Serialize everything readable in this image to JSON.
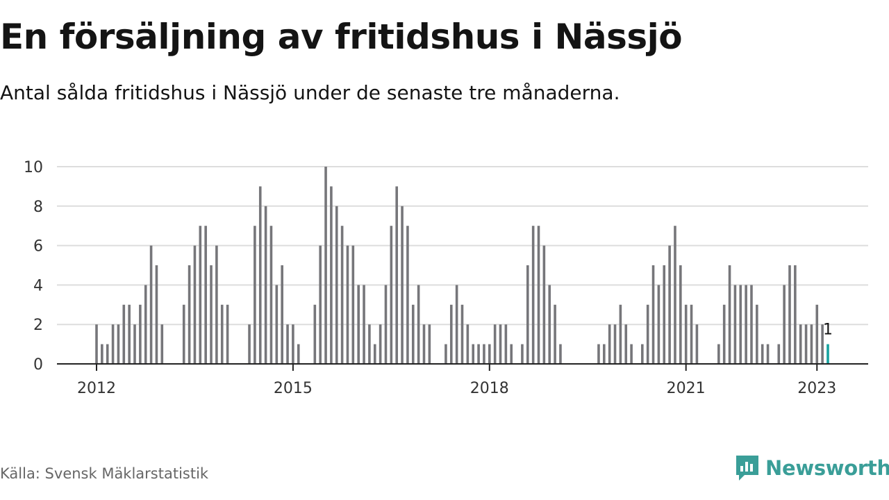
{
  "header": {
    "title": "En försäljning av fritidshus i Nässjö",
    "subtitle": "Antal sålda fritidshus i Nässjö under de senaste tre månaderna."
  },
  "footer": {
    "source": "Källa: Svensk Mäklarstatistik",
    "brand": "Newsworthy"
  },
  "colors": {
    "bar": "#76767a",
    "highlight": "#17a2a0",
    "grid": "#dddddd",
    "axis": "#222222",
    "brand": "#3a9e98"
  },
  "chart_data": {
    "type": "bar",
    "x_start": "2012-01",
    "x_end": "2023-01",
    "values": [
      2,
      1,
      1,
      2,
      2,
      3,
      3,
      2,
      3,
      4,
      6,
      5,
      2,
      null,
      null,
      null,
      3,
      5,
      6,
      7,
      7,
      5,
      6,
      3,
      3,
      null,
      null,
      null,
      2,
      7,
      9,
      8,
      7,
      4,
      5,
      2,
      2,
      1,
      null,
      null,
      3,
      6,
      10,
      9,
      8,
      7,
      6,
      6,
      4,
      4,
      2,
      1,
      2,
      4,
      7,
      9,
      8,
      7,
      3,
      4,
      2,
      2,
      null,
      null,
      1,
      3,
      4,
      3,
      2,
      1,
      1,
      1,
      1,
      2,
      2,
      2,
      1,
      null,
      1,
      5,
      7,
      7,
      6,
      4,
      3,
      1,
      null,
      null,
      null,
      null,
      null,
      null,
      1,
      1,
      2,
      2,
      3,
      2,
      1,
      null,
      1,
      3,
      5,
      4,
      5,
      6,
      7,
      5,
      3,
      3,
      2,
      null,
      null,
      null,
      1,
      3,
      5,
      4,
      4,
      4,
      4,
      3,
      1,
      1,
      null,
      1,
      4,
      5,
      5,
      2,
      2,
      2,
      3,
      2,
      1
    ],
    "highlight_last": true,
    "annotation": "1",
    "xticks": [
      {
        "label": "2012",
        "date": "2012-01"
      },
      {
        "label": "2015",
        "date": "2015-01"
      },
      {
        "label": "2018",
        "date": "2018-01"
      },
      {
        "label": "2021",
        "date": "2021-01"
      },
      {
        "label": "2023",
        "date": "2023-01"
      }
    ],
    "yticks": [
      0,
      2,
      4,
      6,
      8,
      10
    ],
    "ylim": [
      0,
      10
    ],
    "grid": true,
    "xlabel": "",
    "ylabel": ""
  }
}
